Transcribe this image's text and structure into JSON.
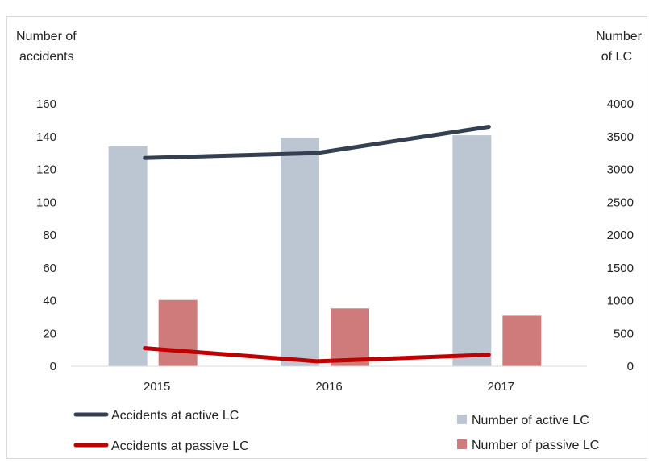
{
  "chart_data": {
    "type": "bar",
    "categories": [
      "2015",
      "2016",
      "2017"
    ],
    "y_left_label_lines": [
      "Number of",
      "accidents"
    ],
    "y_right_label_lines": [
      "Number",
      "of LC"
    ],
    "y_left_ticks": [
      "0",
      "20",
      "40",
      "60",
      "80",
      "100",
      "120",
      "140",
      "160"
    ],
    "y_right_ticks": [
      "0",
      "500",
      "1000",
      "1500",
      "2000",
      "2500",
      "3000",
      "3500",
      "4000"
    ],
    "ylim_left": [
      0,
      160
    ],
    "ylim_right": [
      0,
      4000
    ],
    "bar_series": [
      {
        "name": "Number of active LC",
        "axis": "right",
        "color": "#bcc6d3",
        "values": [
          3350,
          3480,
          3520
        ]
      },
      {
        "name": "Number of passive LC",
        "axis": "right",
        "color": "#d07b7b",
        "values": [
          1010,
          880,
          780
        ]
      }
    ],
    "line_series": [
      {
        "name": "Accidents at active LC",
        "axis": "left",
        "color": "#343f52",
        "values": [
          127,
          130,
          146
        ]
      },
      {
        "name": "Accidents at passive LC",
        "axis": "left",
        "color": "#c00000",
        "values": [
          11,
          3,
          7
        ]
      }
    ],
    "grid": false,
    "legend_placement": "bottom"
  }
}
